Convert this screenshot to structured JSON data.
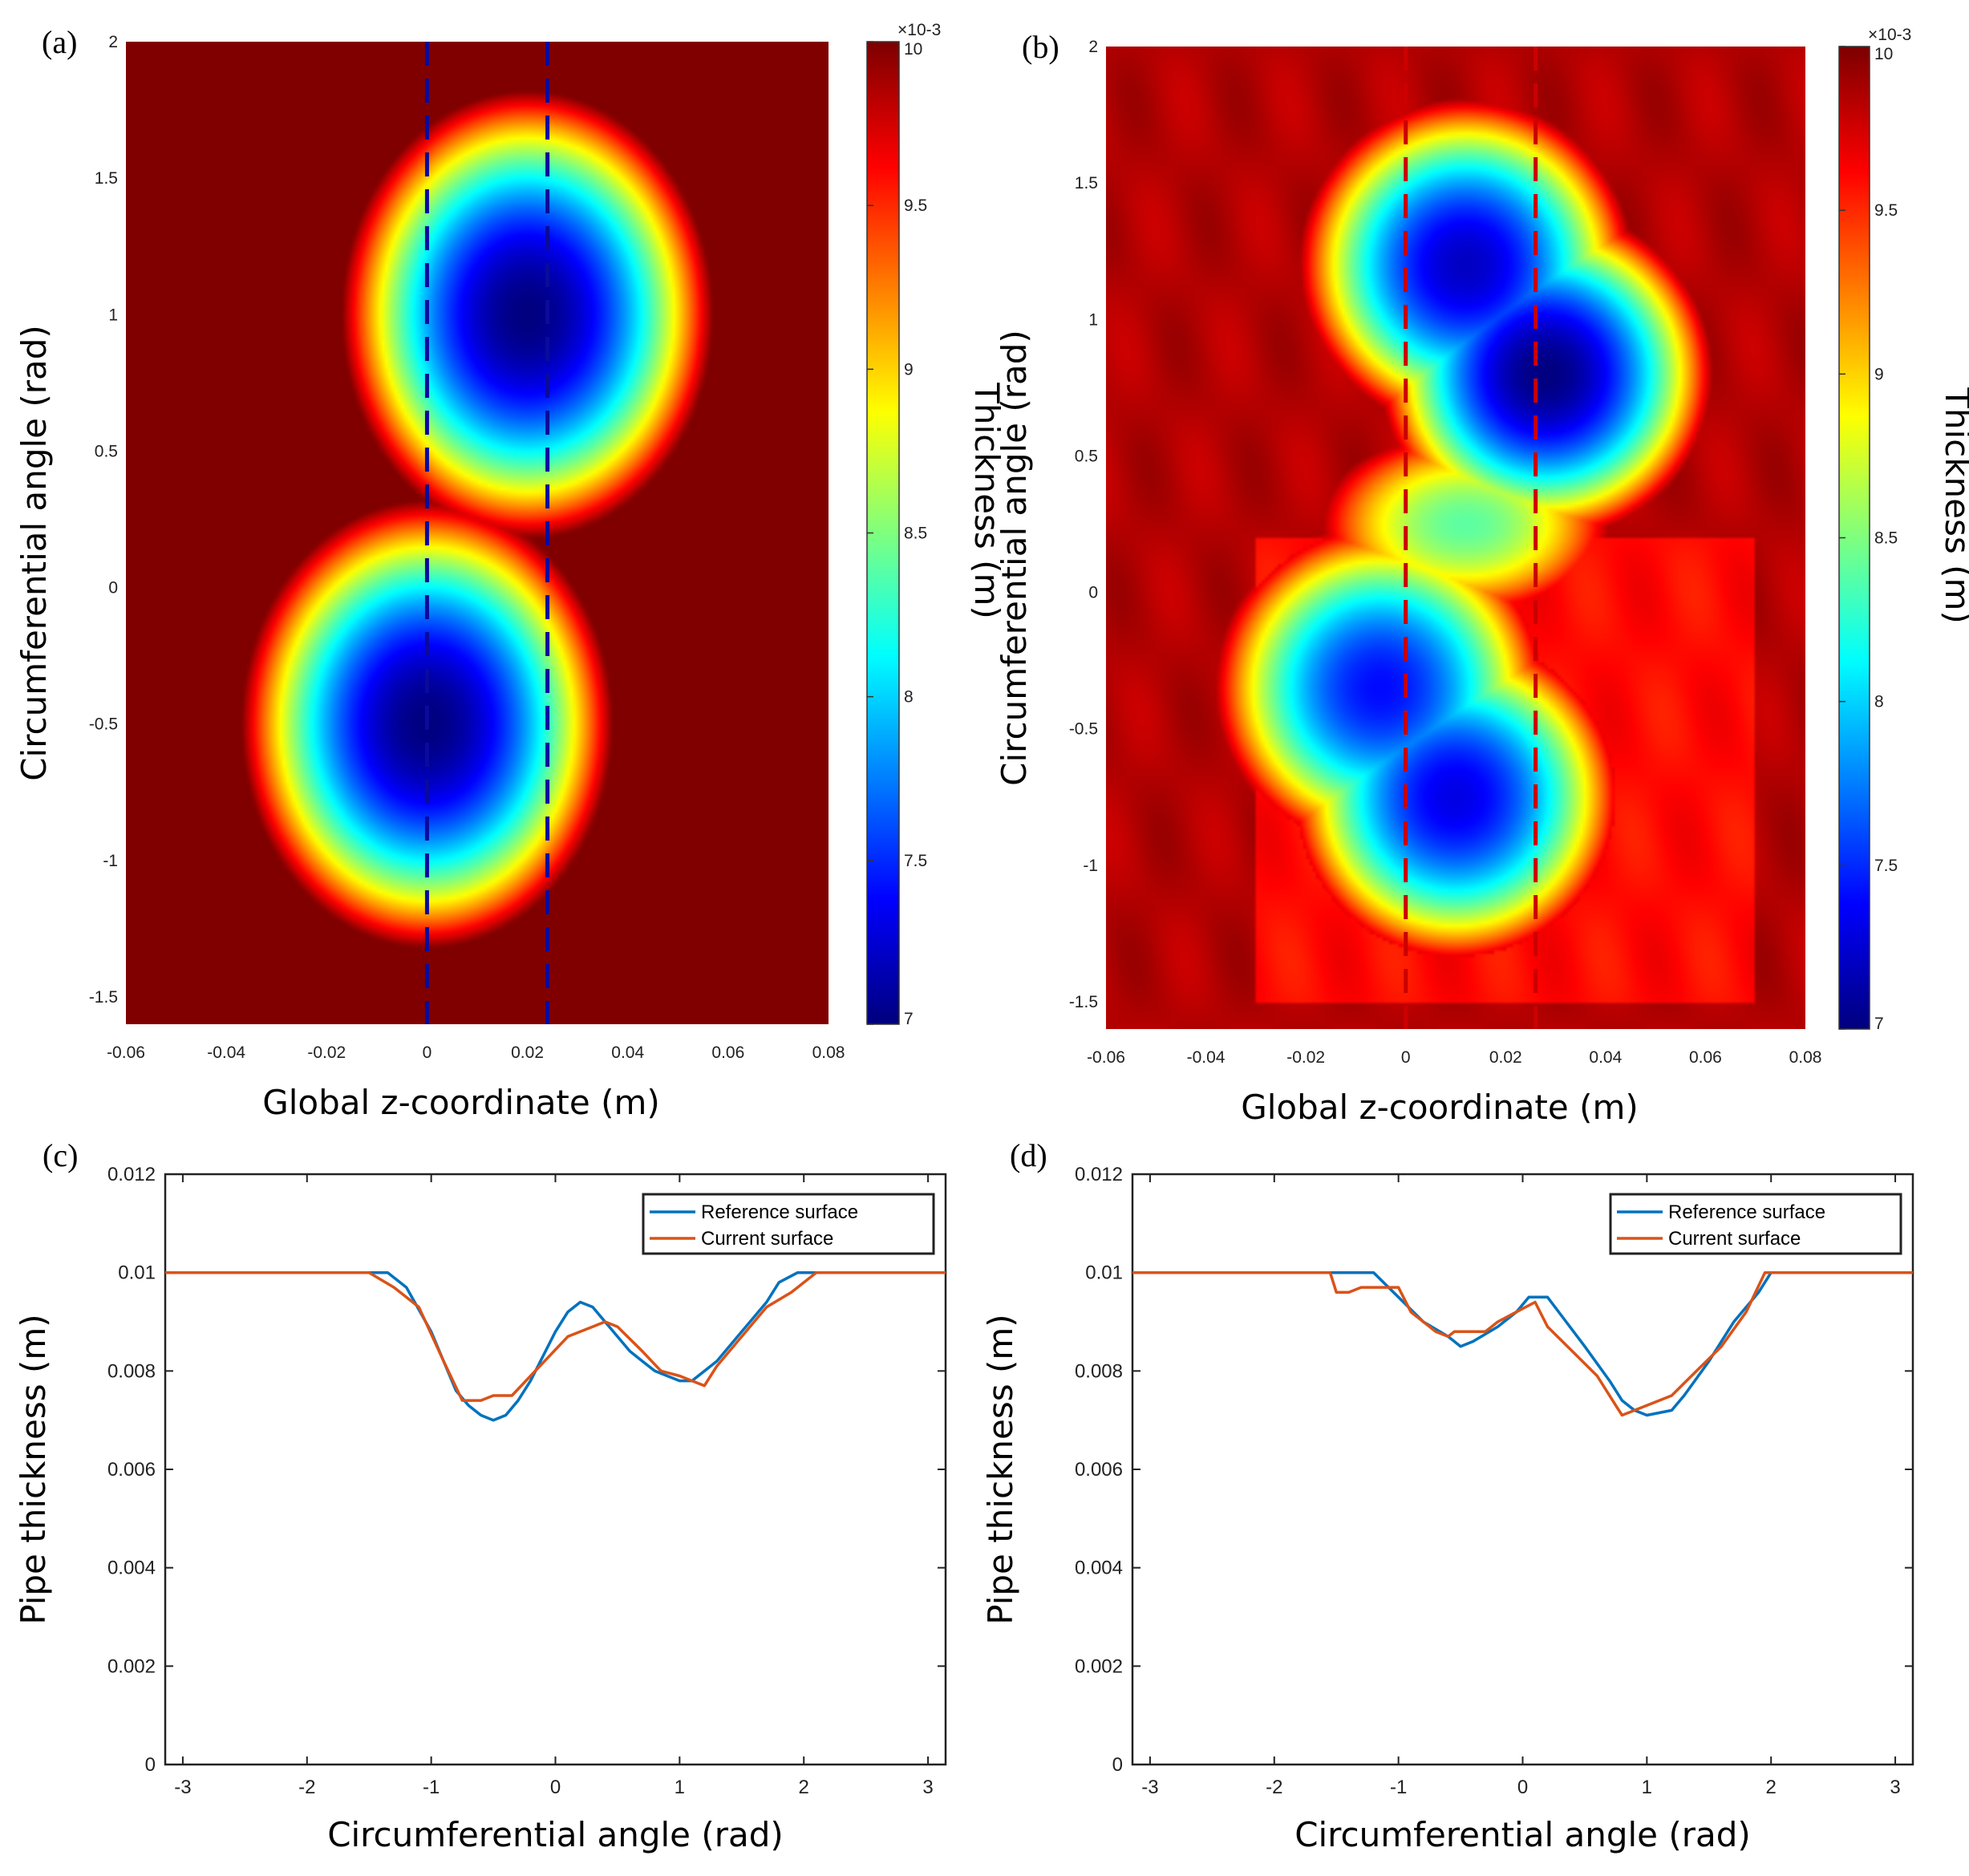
{
  "chart_data": [
    {
      "panel": "(a)",
      "type": "heatmap",
      "xlabel": "Global z-coordinate (m)",
      "ylabel": "Circumferential angle (rad)",
      "xlim": [
        -0.06,
        0.08
      ],
      "ylim": [
        -1.6,
        2
      ],
      "xticks": [
        "-0.06",
        "-0.04",
        "-0.02",
        "0",
        "0.02",
        "0.04",
        "0.06",
        "0.08"
      ],
      "yticks": [
        "-1.5",
        "-1",
        "-0.5",
        "0",
        "0.5",
        "1",
        "1.5",
        "2"
      ],
      "colorbar": {
        "label": "Thickness (m)",
        "exponent": "×10-3",
        "range": [
          7,
          10
        ],
        "ticks": [
          "7",
          "7.5",
          "8",
          "8.5",
          "9",
          "9.5",
          "10"
        ],
        "colormap": "jet"
      },
      "baseline_thickness": 10,
      "minima": [
        {
          "z": 0.02,
          "angle": 1.0,
          "thickness": 7.0
        },
        {
          "z": 0.0,
          "angle": -0.5,
          "thickness": 7.0
        }
      ],
      "dashed_lines": {
        "z": [
          0,
          0.024
        ],
        "color": "#0a0a9c"
      }
    },
    {
      "panel": "(b)",
      "type": "heatmap",
      "xlabel": "Global z-coordinate (m)",
      "ylabel": "Circumferential angle (rad)",
      "xlim": [
        -0.06,
        0.08
      ],
      "ylim": [
        -1.6,
        2
      ],
      "xticks": [
        "-0.06",
        "-0.04",
        "-0.02",
        "0",
        "0.02",
        "0.04",
        "0.06",
        "0.08"
      ],
      "yticks": [
        "-1.5",
        "-1",
        "-0.5",
        "0",
        "0.5",
        "1",
        "1.5",
        "2"
      ],
      "colorbar": {
        "label": "Thickness (m)",
        "exponent": "×10-3",
        "range": [
          7,
          10
        ],
        "ticks": [
          "7",
          "7.5",
          "8",
          "8.5",
          "9",
          "9.5",
          "10"
        ],
        "colormap": "jet"
      },
      "baseline_thickness": 10,
      "minima": [
        {
          "z": 0.012,
          "angle": 1.2,
          "thickness": 7.2
        },
        {
          "z": 0.028,
          "angle": 0.8,
          "thickness": 7.0
        },
        {
          "z": -0.005,
          "angle": -0.35,
          "thickness": 7.4
        },
        {
          "z": 0.01,
          "angle": -0.75,
          "thickness": 7.3
        }
      ],
      "dashed_lines": {
        "z": [
          0,
          0.026
        ],
        "color": "#cc0000"
      }
    },
    {
      "panel": "(c)",
      "type": "line",
      "xlabel": "Circumferential angle (rad)",
      "ylabel": "Pipe thickness (m)",
      "xlim": [
        -3.1416,
        3.1416
      ],
      "ylim": [
        0,
        0.012
      ],
      "xticks": [
        "-3",
        "-2",
        "-1",
        "0",
        "1",
        "2",
        "3"
      ],
      "yticks": [
        "0",
        "0.002",
        "0.004",
        "0.006",
        "0.008",
        "0.01",
        "0.012"
      ],
      "legend": "top-right",
      "series": [
        {
          "name": "Reference surface",
          "color": "#0072BD",
          "x": [
            -3.1416,
            -1.35,
            -1.2,
            -1.0,
            -0.8,
            -0.7,
            -0.6,
            -0.5,
            -0.4,
            -0.3,
            -0.2,
            -0.1,
            0,
            0.1,
            0.2,
            0.3,
            0.4,
            0.5,
            0.6,
            0.7,
            0.8,
            0.9,
            1.0,
            1.1,
            1.3,
            1.5,
            1.7,
            1.8,
            1.95,
            3.1416
          ],
          "y": [
            0.01,
            0.01,
            0.0097,
            0.0088,
            0.0076,
            0.0073,
            0.0071,
            0.007,
            0.0071,
            0.0074,
            0.0078,
            0.0083,
            0.0088,
            0.0092,
            0.0094,
            0.0093,
            0.009,
            0.0087,
            0.0084,
            0.0082,
            0.008,
            0.0079,
            0.0078,
            0.0078,
            0.0082,
            0.0088,
            0.0094,
            0.0098,
            0.01,
            0.01
          ]
        },
        {
          "name": "Current surface",
          "color": "#D95319",
          "x": [
            -3.1416,
            -1.5,
            -1.3,
            -1.1,
            -0.9,
            -0.75,
            -0.6,
            -0.5,
            -0.35,
            -0.2,
            -0.05,
            0.1,
            0.2,
            0.3,
            0.4,
            0.5,
            0.7,
            0.85,
            1.0,
            1.1,
            1.2,
            1.3,
            1.5,
            1.7,
            1.9,
            2.1,
            3.1416
          ],
          "y": [
            0.01,
            0.01,
            0.0097,
            0.0093,
            0.0082,
            0.0074,
            0.0074,
            0.0075,
            0.0075,
            0.0079,
            0.0083,
            0.0087,
            0.0088,
            0.0089,
            0.009,
            0.0089,
            0.0084,
            0.008,
            0.0079,
            0.0078,
            0.0077,
            0.0081,
            0.0087,
            0.0093,
            0.0096,
            0.01,
            0.01
          ]
        }
      ]
    },
    {
      "panel": "(d)",
      "type": "line",
      "xlabel": "Circumferential angle (rad)",
      "ylabel": "Pipe thickness (m)",
      "xlim": [
        -3.1416,
        3.1416
      ],
      "ylim": [
        0,
        0.012
      ],
      "xticks": [
        "-3",
        "-2",
        "-1",
        "0",
        "1",
        "2",
        "3"
      ],
      "yticks": [
        "0",
        "0.002",
        "0.004",
        "0.006",
        "0.008",
        "0.01",
        "0.012"
      ],
      "legend": "top-right",
      "series": [
        {
          "name": "Reference surface",
          "color": "#0072BD",
          "x": [
            -3.1416,
            -1.2,
            -1.0,
            -0.8,
            -0.6,
            -0.5,
            -0.4,
            -0.2,
            -0.05,
            0.05,
            0.2,
            0.35,
            0.5,
            0.7,
            0.8,
            0.9,
            1.0,
            1.2,
            1.3,
            1.5,
            1.7,
            1.9,
            2.0,
            3.1416
          ],
          "y": [
            0.01,
            0.01,
            0.0095,
            0.009,
            0.0087,
            0.0085,
            0.0086,
            0.0089,
            0.0092,
            0.0095,
            0.0095,
            0.009,
            0.0085,
            0.0078,
            0.0074,
            0.0072,
            0.0071,
            0.0072,
            0.0075,
            0.0082,
            0.009,
            0.0096,
            0.01,
            0.01
          ]
        },
        {
          "name": "Current surface",
          "color": "#D95319",
          "x": [
            -3.1416,
            -1.55,
            -1.5,
            -1.4,
            -1.3,
            -1.0,
            -0.9,
            -0.7,
            -0.6,
            -0.55,
            -0.3,
            -0.2,
            -0.05,
            0.1,
            0.2,
            0.4,
            0.6,
            0.75,
            0.8,
            0.9,
            1.0,
            1.2,
            1.4,
            1.6,
            1.8,
            1.95,
            3.1416
          ],
          "y": [
            0.01,
            0.01,
            0.0096,
            0.0096,
            0.0097,
            0.0097,
            0.0092,
            0.0088,
            0.0087,
            0.0088,
            0.0088,
            0.009,
            0.0092,
            0.0094,
            0.0089,
            0.0084,
            0.0079,
            0.0073,
            0.0071,
            0.0072,
            0.0073,
            0.0075,
            0.008,
            0.0085,
            0.0092,
            0.01,
            0.01
          ]
        }
      ]
    }
  ]
}
